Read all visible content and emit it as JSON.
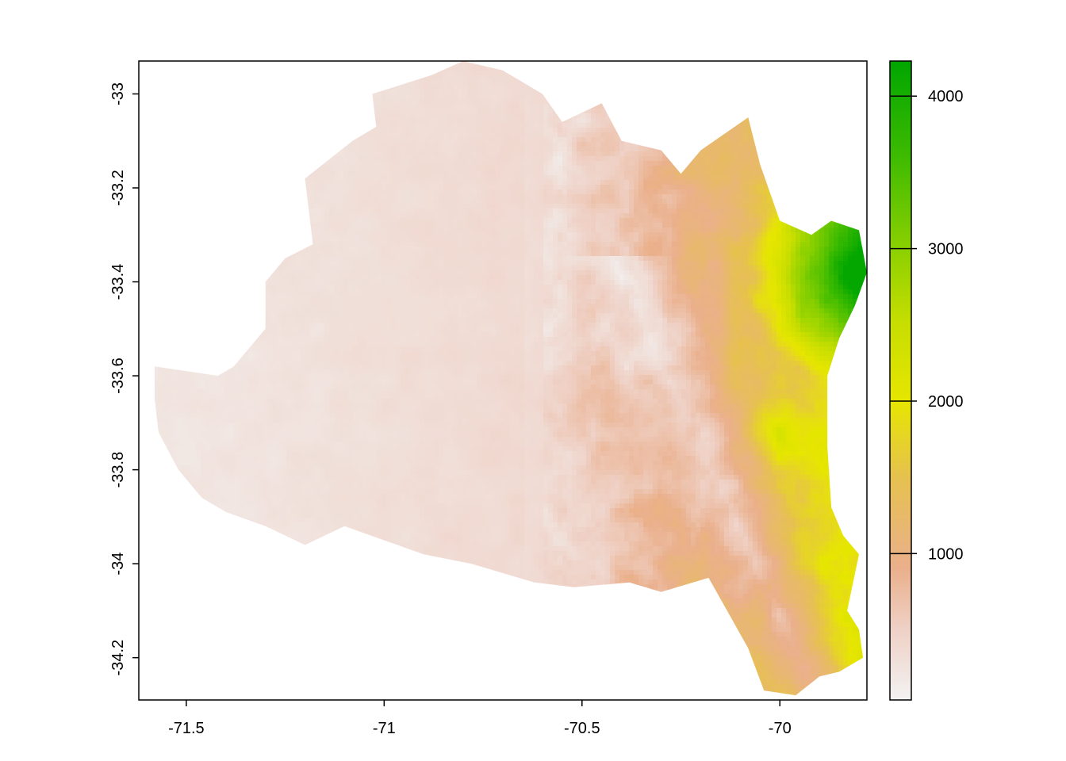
{
  "chart_data": {
    "type": "heatmap",
    "title": "",
    "xlabel": "",
    "ylabel": "",
    "xlim": [
      -71.62,
      -69.78
    ],
    "ylim": [
      -34.29,
      -32.93
    ],
    "x_ticks": [
      "-71.5",
      "-71",
      "-70.5",
      "-70"
    ],
    "x_tick_values": [
      -71.5,
      -71.0,
      -70.5,
      -70.0
    ],
    "y_ticks": [
      "-33",
      "-33.2",
      "-33.4",
      "-33.6",
      "-33.8",
      "-34",
      "-34.2"
    ],
    "y_tick_values": [
      -33.0,
      -33.2,
      -33.4,
      -33.6,
      -33.8,
      -34.0,
      -34.2
    ],
    "legend": {
      "position": "right",
      "ticks": [
        "1000",
        "2000",
        "3000",
        "4000"
      ],
      "tick_values": [
        1000,
        2000,
        3000,
        4000
      ],
      "range": [
        40,
        4230
      ],
      "color_stops": [
        {
          "value": 40,
          "color": "#f2f2f2"
        },
        {
          "value": 500,
          "color": "#efd1c6"
        },
        {
          "value": 900,
          "color": "#eab08c"
        },
        {
          "value": 1500,
          "color": "#e6c14f"
        },
        {
          "value": 2000,
          "color": "#e6e600"
        },
        {
          "value": 2500,
          "color": "#c8de00"
        },
        {
          "value": 3000,
          "color": "#8bd000"
        },
        {
          "value": 3600,
          "color": "#3ebb00"
        },
        {
          "value": 4230,
          "color": "#00a600"
        }
      ]
    },
    "boundary": [
      [
        -71.58,
        -33.58
      ],
      [
        -71.42,
        -33.6
      ],
      [
        -71.38,
        -33.58
      ],
      [
        -71.3,
        -33.5
      ],
      [
        -71.3,
        -33.4
      ],
      [
        -71.25,
        -33.35
      ],
      [
        -71.18,
        -33.32
      ],
      [
        -71.2,
        -33.18
      ],
      [
        -71.08,
        -33.1
      ],
      [
        -71.02,
        -33.07
      ],
      [
        -71.03,
        -33.0
      ],
      [
        -70.88,
        -32.96
      ],
      [
        -70.8,
        -32.93
      ],
      [
        -70.7,
        -32.95
      ],
      [
        -70.6,
        -33.0
      ],
      [
        -70.55,
        -33.06
      ],
      [
        -70.45,
        -33.02
      ],
      [
        -70.4,
        -33.1
      ],
      [
        -70.3,
        -33.12
      ],
      [
        -70.25,
        -33.17
      ],
      [
        -70.2,
        -33.12
      ],
      [
        -70.08,
        -33.05
      ],
      [
        -70.05,
        -33.15
      ],
      [
        -70.0,
        -33.27
      ],
      [
        -69.92,
        -33.3
      ],
      [
        -69.87,
        -33.27
      ],
      [
        -69.8,
        -33.29
      ],
      [
        -69.78,
        -33.38
      ],
      [
        -69.81,
        -33.45
      ],
      [
        -69.85,
        -33.52
      ],
      [
        -69.88,
        -33.6
      ],
      [
        -69.88,
        -33.75
      ],
      [
        -69.87,
        -33.88
      ],
      [
        -69.84,
        -33.94
      ],
      [
        -69.8,
        -33.98
      ],
      [
        -69.83,
        -34.1
      ],
      [
        -69.8,
        -34.14
      ],
      [
        -69.79,
        -34.2
      ],
      [
        -69.85,
        -34.23
      ],
      [
        -69.9,
        -34.24
      ],
      [
        -69.96,
        -34.28
      ],
      [
        -70.04,
        -34.27
      ],
      [
        -70.08,
        -34.18
      ],
      [
        -70.12,
        -34.12
      ],
      [
        -70.18,
        -34.03
      ],
      [
        -70.3,
        -34.06
      ],
      [
        -70.38,
        -34.04
      ],
      [
        -70.52,
        -34.05
      ],
      [
        -70.62,
        -34.04
      ],
      [
        -70.78,
        -34.0
      ],
      [
        -70.9,
        -33.98
      ],
      [
        -71.0,
        -33.95
      ],
      [
        -71.1,
        -33.92
      ],
      [
        -71.2,
        -33.96
      ],
      [
        -71.3,
        -33.92
      ],
      [
        -71.4,
        -33.89
      ],
      [
        -71.46,
        -33.86
      ],
      [
        -71.52,
        -33.8
      ],
      [
        -71.57,
        -33.72
      ],
      [
        -71.58,
        -33.65
      ]
    ]
  }
}
